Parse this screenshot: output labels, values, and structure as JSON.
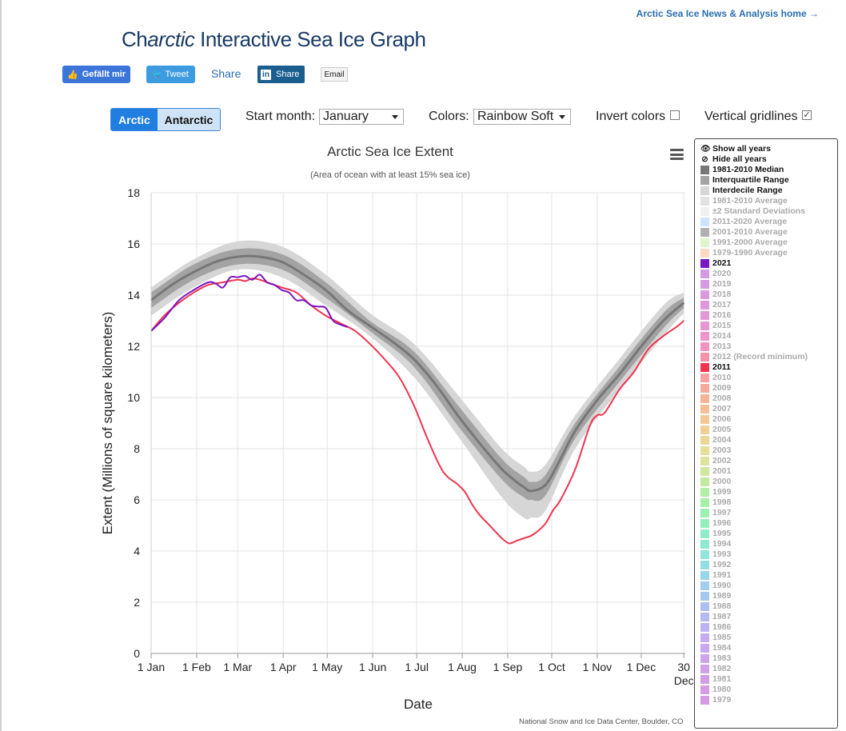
{
  "header": {
    "news_link": "Arctic Sea Ice News & Analysis home →",
    "title_prefix": "Ch",
    "title_italic": "arctic",
    "title_suffix": " Interactive Sea Ice Graph"
  },
  "social": {
    "facebook": "Gefällt mir",
    "tweet": "Tweet",
    "share_text": "Share",
    "linkedin": "Share",
    "linkedin_icon": "in",
    "email": "Email"
  },
  "controls": {
    "hemisphere": [
      "Arctic",
      "Antarctic"
    ],
    "start_month_label": "Start month:",
    "start_month_value": "January",
    "colors_label": "Colors:",
    "colors_value": "Rainbow Soft",
    "invert_label": "Invert colors",
    "invert_checked": false,
    "gridlines_label": "Vertical gridlines",
    "gridlines_checked": true,
    "check_mark": "✓"
  },
  "colors": {
    "line_2021": "#7a16c2",
    "line_2011": "#f0344f",
    "median": "#777777",
    "interquartile": "#a3a3a3",
    "interdecile": "#d6d6d6"
  },
  "chart_data": {
    "type": "line",
    "title": "Arctic Sea Ice Extent",
    "subtitle": "(Area of ocean with at least 15% sea ice)",
    "xlabel": "Date",
    "ylabel": "Extent (Millions of square kilometers)",
    "ylim": [
      0,
      18
    ],
    "yticks": [
      0,
      2,
      4,
      6,
      8,
      10,
      12,
      14,
      16,
      18
    ],
    "xlim_day": [
      1,
      365
    ],
    "xticks": [
      {
        "day": 1,
        "label": "1 Jan"
      },
      {
        "day": 32,
        "label": "1 Feb"
      },
      {
        "day": 60,
        "label": "1 Mar"
      },
      {
        "day": 91,
        "label": "1 Apr"
      },
      {
        "day": 121,
        "label": "1 May"
      },
      {
        "day": 152,
        "label": "1 Jun"
      },
      {
        "day": 182,
        "label": "1 Jul"
      },
      {
        "day": 213,
        "label": "1 Aug"
      },
      {
        "day": 244,
        "label": "1 Sep"
      },
      {
        "day": 274,
        "label": "1 Oct"
      },
      {
        "day": 305,
        "label": "1 Nov"
      },
      {
        "day": 335,
        "label": "1 Dec"
      },
      {
        "day": 364,
        "label": "30\nDec"
      }
    ],
    "grid": true,
    "legend_position": "right",
    "series": [
      {
        "name": "1981-2010 Median",
        "kind": "line",
        "x": [
          1,
          15,
          30,
          45,
          60,
          75,
          90,
          105,
          120,
          135,
          150,
          165,
          180,
          195,
          210,
          225,
          240,
          250,
          255,
          260,
          270,
          280,
          290,
          305,
          320,
          335,
          350,
          364
        ],
        "y": [
          13.8,
          14.4,
          14.9,
          15.3,
          15.5,
          15.5,
          15.3,
          14.8,
          14.2,
          13.4,
          12.8,
          12.2,
          11.5,
          10.5,
          9.3,
          8.2,
          7.2,
          6.7,
          6.5,
          6.35,
          6.6,
          7.6,
          8.7,
          9.9,
          10.9,
          12.0,
          13.0,
          13.7
        ]
      },
      {
        "name": "Interquartile Range",
        "kind": "band",
        "x": [
          1,
          30,
          60,
          90,
          120,
          150,
          180,
          210,
          240,
          255,
          260,
          270,
          290,
          320,
          350,
          364
        ],
        "lower": [
          13.5,
          14.6,
          15.2,
          15.0,
          13.9,
          12.6,
          11.2,
          8.9,
          6.8,
          6.1,
          6.0,
          6.2,
          8.4,
          10.6,
          12.7,
          13.5
        ],
        "upper": [
          14.1,
          15.2,
          15.8,
          15.6,
          14.5,
          13.0,
          11.8,
          9.7,
          7.6,
          6.9,
          6.7,
          7.0,
          9.0,
          11.2,
          13.3,
          13.9
        ]
      },
      {
        "name": "Interdecile Range",
        "kind": "band",
        "x": [
          1,
          30,
          60,
          90,
          120,
          150,
          180,
          210,
          240,
          255,
          260,
          270,
          290,
          320,
          350,
          364
        ],
        "lower": [
          13.2,
          14.3,
          15.0,
          14.7,
          13.6,
          12.4,
          10.8,
          8.5,
          6.1,
          5.3,
          5.3,
          5.6,
          8.0,
          10.3,
          12.4,
          13.3
        ],
        "upper": [
          14.3,
          15.4,
          16.1,
          15.9,
          14.8,
          13.3,
          12.1,
          10.1,
          8.0,
          7.3,
          7.1,
          7.4,
          9.3,
          11.5,
          13.6,
          14.1
        ]
      },
      {
        "name": "2021",
        "kind": "line",
        "x": [
          1,
          10,
          20,
          30,
          40,
          45,
          50,
          55,
          60,
          65,
          70,
          75,
          80,
          85,
          90,
          95,
          100,
          105,
          110,
          115,
          120,
          125,
          130,
          135
        ],
        "y": [
          12.6,
          13.1,
          13.8,
          14.2,
          14.5,
          14.45,
          14.3,
          14.7,
          14.7,
          14.75,
          14.6,
          14.8,
          14.5,
          14.4,
          14.2,
          14.1,
          13.8,
          13.8,
          13.6,
          13.55,
          13.5,
          13.0,
          12.85,
          12.75
        ]
      },
      {
        "name": "2011",
        "kind": "line",
        "x": [
          1,
          10,
          20,
          30,
          40,
          50,
          60,
          65,
          70,
          75,
          80,
          90,
          100,
          110,
          120,
          130,
          140,
          150,
          160,
          170,
          180,
          190,
          200,
          210,
          215,
          220,
          225,
          230,
          235,
          240,
          245,
          250,
          255,
          260,
          265,
          270,
          275,
          280,
          290,
          300,
          305,
          310,
          320,
          330,
          340,
          350,
          360,
          364
        ],
        "y": [
          12.6,
          13.2,
          13.7,
          14.1,
          14.4,
          14.5,
          14.6,
          14.55,
          14.65,
          14.6,
          14.5,
          14.3,
          14.1,
          13.6,
          13.2,
          12.9,
          12.6,
          12.1,
          11.5,
          10.8,
          9.7,
          8.3,
          7.1,
          6.6,
          6.3,
          5.8,
          5.4,
          5.1,
          4.8,
          4.5,
          4.3,
          4.4,
          4.5,
          4.6,
          4.8,
          5.1,
          5.6,
          6.0,
          7.2,
          8.9,
          9.3,
          9.4,
          10.3,
          11.0,
          11.9,
          12.4,
          12.8,
          13.0
        ]
      }
    ]
  },
  "legend": {
    "items": [
      {
        "label": "Show all years",
        "icon": "eye-icon",
        "glyph": "👁",
        "style": "dark"
      },
      {
        "label": "Hide all years",
        "icon": "eye-slash-icon",
        "glyph": "⊘",
        "style": "dark"
      },
      {
        "label": "1981-2010 Median",
        "color": "#777777",
        "style": "dark"
      },
      {
        "label": "Interquartile Range",
        "color": "#a3a3a3",
        "style": "dark"
      },
      {
        "label": "Interdecile Range",
        "color": "#d6d6d6",
        "style": "dark"
      },
      {
        "label": "1981-2010 Average",
        "color": "#e2e2e2",
        "style": "muted"
      },
      {
        "label": "±2 Standard Deviations",
        "color": "#f0f0f0",
        "style": "muted"
      },
      {
        "label": "2011-2020 Average",
        "color": "#cfe4fb",
        "style": "muted"
      },
      {
        "label": "2001-2010 Average",
        "color": "#b0b0b0",
        "style": "muted"
      },
      {
        "label": "1991-2000 Average",
        "color": "#dff5d0",
        "style": "muted"
      },
      {
        "label": "1979-1990 Average",
        "color": "#fbd9c4",
        "style": "muted"
      },
      {
        "label": "2021",
        "color": "#7a16c2",
        "style": "dark"
      },
      {
        "label": "2020",
        "color": "#d49be4",
        "style": "muted"
      },
      {
        "label": "2019",
        "color": "#d79ae2",
        "style": "muted"
      },
      {
        "label": "2018",
        "color": "#da99df",
        "style": "muted"
      },
      {
        "label": "2017",
        "color": "#de98db",
        "style": "muted"
      },
      {
        "label": "2016",
        "color": "#e297d6",
        "style": "muted"
      },
      {
        "label": "2015",
        "color": "#e796d0",
        "style": "muted"
      },
      {
        "label": "2014",
        "color": "#eb95c8",
        "style": "muted"
      },
      {
        "label": "2013",
        "color": "#f095bf",
        "style": "muted"
      },
      {
        "label": "2012 (Record minimum)",
        "color": "#f293a9",
        "style": "muted"
      },
      {
        "label": "2011",
        "color": "#f0344f",
        "style": "dark"
      },
      {
        "label": "2010",
        "color": "#f6a2a3",
        "style": "muted"
      },
      {
        "label": "2009",
        "color": "#f5ab9c",
        "style": "muted"
      },
      {
        "label": "2008",
        "color": "#f6b597",
        "style": "muted"
      },
      {
        "label": "2007",
        "color": "#f5be94",
        "style": "muted"
      },
      {
        "label": "2006",
        "color": "#f4c894",
        "style": "muted"
      },
      {
        "label": "2005",
        "color": "#f1d095",
        "style": "muted"
      },
      {
        "label": "2004",
        "color": "#ecd896",
        "style": "muted"
      },
      {
        "label": "2003",
        "color": "#e5df98",
        "style": "muted"
      },
      {
        "label": "2002",
        "color": "#dbe49a",
        "style": "muted"
      },
      {
        "label": "2001",
        "color": "#cfe89d",
        "style": "muted"
      },
      {
        "label": "2000",
        "color": "#c2eba0",
        "style": "muted"
      },
      {
        "label": "1999",
        "color": "#b4eea5",
        "style": "muted"
      },
      {
        "label": "1998",
        "color": "#a6f0ab",
        "style": "muted"
      },
      {
        "label": "1997",
        "color": "#9cf0b3",
        "style": "muted"
      },
      {
        "label": "1996",
        "color": "#94efbd",
        "style": "muted"
      },
      {
        "label": "1995",
        "color": "#90ecc7",
        "style": "muted"
      },
      {
        "label": "1994",
        "color": "#8fe9d1",
        "style": "muted"
      },
      {
        "label": "1993",
        "color": "#90e4da",
        "style": "muted"
      },
      {
        "label": "1992",
        "color": "#93dee2",
        "style": "muted"
      },
      {
        "label": "1991",
        "color": "#98d7e8",
        "style": "muted"
      },
      {
        "label": "1990",
        "color": "#9fcfed",
        "style": "muted"
      },
      {
        "label": "1989",
        "color": "#a6c7f0",
        "style": "muted"
      },
      {
        "label": "1988",
        "color": "#aebff2",
        "style": "muted"
      },
      {
        "label": "1987",
        "color": "#b6b8f3",
        "style": "muted"
      },
      {
        "label": "1986",
        "color": "#bdb2f3",
        "style": "muted"
      },
      {
        "label": "1985",
        "color": "#c3acf1",
        "style": "muted"
      },
      {
        "label": "1984",
        "color": "#c8a8ef",
        "style": "muted"
      },
      {
        "label": "1983",
        "color": "#cca4ec",
        "style": "muted"
      },
      {
        "label": "1982",
        "color": "#cfa1e9",
        "style": "muted"
      },
      {
        "label": "1981",
        "color": "#d19ee6",
        "style": "muted"
      },
      {
        "label": "1980",
        "color": "#d39ce5",
        "style": "muted"
      },
      {
        "label": "1979",
        "color": "#d49be4",
        "style": "muted"
      }
    ]
  },
  "credit": "National Snow and Ice Data Center, Boulder, CO"
}
